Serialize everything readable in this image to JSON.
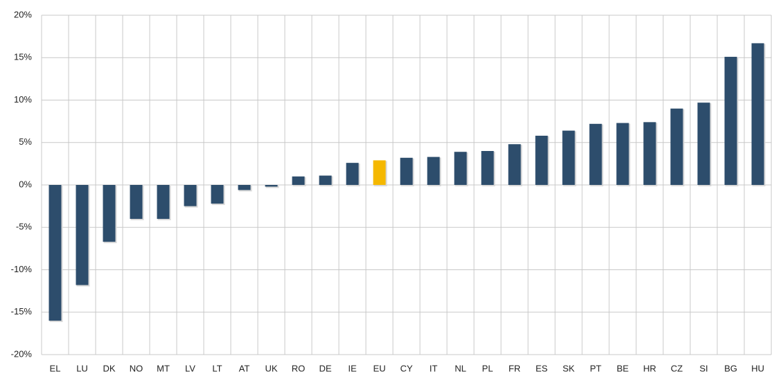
{
  "chart_data": {
    "type": "bar",
    "categories": [
      "EL",
      "LU",
      "DK",
      "NO",
      "MT",
      "LV",
      "LT",
      "AT",
      "UK",
      "RO",
      "DE",
      "IE",
      "EU",
      "CY",
      "IT",
      "NL",
      "PL",
      "FR",
      "ES",
      "SK",
      "PT",
      "BE",
      "HR",
      "CZ",
      "SI",
      "BG",
      "HU"
    ],
    "values": [
      -16,
      -11.8,
      -6.7,
      -4,
      -4,
      -2.5,
      -2.2,
      -0.6,
      -0.2,
      1,
      1.1,
      2.6,
      2.9,
      3.2,
      3.3,
      3.9,
      4,
      4.8,
      5.8,
      6.4,
      7.2,
      7.3,
      7.4,
      9,
      9.7,
      15.1,
      16.7
    ],
    "colors": [
      "#2d4d6c",
      "#2d4d6c",
      "#2d4d6c",
      "#2d4d6c",
      "#2d4d6c",
      "#2d4d6c",
      "#2d4d6c",
      "#2d4d6c",
      "#2d4d6c",
      "#2d4d6c",
      "#2d4d6c",
      "#2d4d6c",
      "#f5b800",
      "#2d4d6c",
      "#2d4d6c",
      "#2d4d6c",
      "#2d4d6c",
      "#2d4d6c",
      "#2d4d6c",
      "#2d4d6c",
      "#2d4d6c",
      "#2d4d6c",
      "#2d4d6c",
      "#2d4d6c",
      "#2d4d6c",
      "#2d4d6c",
      "#2d4d6c"
    ],
    "ylim": [
      -20,
      20
    ],
    "yticks": [
      {
        "value": -20,
        "label": "-20%"
      },
      {
        "value": -15,
        "label": "-15%"
      },
      {
        "value": -10,
        "label": "-10%"
      },
      {
        "value": -5,
        "label": "-5%"
      },
      {
        "value": 0,
        "label": "0%"
      },
      {
        "value": 5,
        "label": "5%"
      },
      {
        "value": 10,
        "label": "10%"
      },
      {
        "value": 15,
        "label": "15%"
      },
      {
        "value": 20,
        "label": "20%"
      }
    ],
    "grid": true
  }
}
